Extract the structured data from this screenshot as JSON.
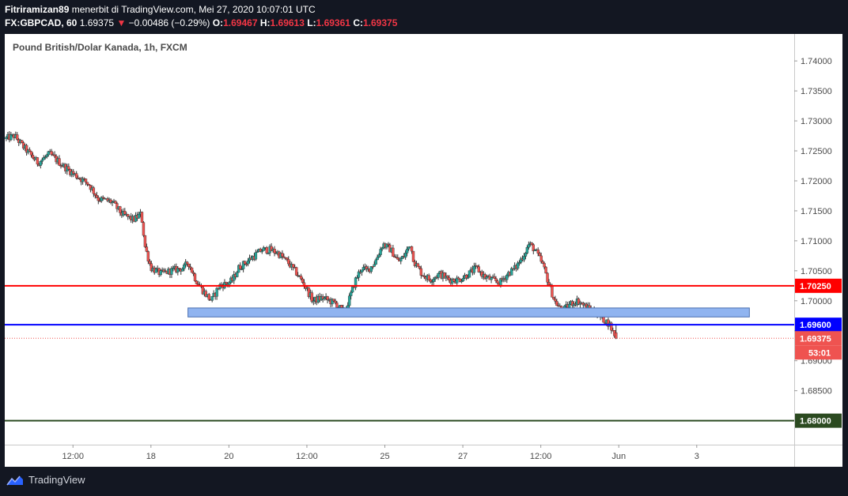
{
  "header": {
    "author": "Fitriramizan89",
    "published_text": "menerbit di TradingView.com, Mei 27, 2020 10:07:01 UTC",
    "symbol_interval": "FX:GBPCAD, 60",
    "last_price": "1.69375",
    "change_arrow": "▼",
    "change": "−0.00486 (−0.29%)",
    "o_label": "O:",
    "o_value": "1.69467",
    "h_label": "H:",
    "h_value": "1.69613",
    "l_label": "L:",
    "l_value": "1.69361",
    "c_label": "C:",
    "c_value": "1.69375"
  },
  "footer": {
    "brand": "TradingView"
  },
  "chart_data": {
    "type": "candlestick",
    "title": "Pound British/Dolar Kanada, 1h, FXCM",
    "ylim": [
      1.676,
      1.7445
    ],
    "y_ticks": [
      "1.74000",
      "1.73500",
      "1.73000",
      "1.72500",
      "1.72000",
      "1.71500",
      "1.71000",
      "1.70500",
      "1.70000",
      "1.69500",
      "1.69000",
      "1.68500"
    ],
    "y_tick_values": [
      1.74,
      1.735,
      1.73,
      1.725,
      1.72,
      1.715,
      1.71,
      1.705,
      1.7,
      1.695,
      1.69,
      1.685
    ],
    "x_ticks": [
      "12:00",
      "18",
      "20",
      "12:00",
      "25",
      "27",
      "12:00",
      "Jun",
      "3"
    ],
    "x_tick_positions": [
      1.5,
      5.5,
      9.5,
      13.5,
      17.5,
      21.5,
      25.5,
      29.5,
      33.5
    ],
    "x_range": [
      -2.0,
      38.5
    ],
    "horizontal_lines": [
      {
        "name": "resistance",
        "value": 1.7025,
        "label": "1.70250",
        "color": "#ff0000"
      },
      {
        "name": "support",
        "value": 1.696,
        "label": "1.69600",
        "color": "#0000ff"
      },
      {
        "name": "target",
        "value": 1.68,
        "label": "1.68000",
        "color": "#2b4a20"
      }
    ],
    "current_price": {
      "value": 1.69375,
      "label": "1.69375",
      "countdown": "53:01",
      "color": "#ef5350"
    },
    "zone": {
      "x_start": 7.4,
      "x_end": 36.2,
      "y_low": 1.6973,
      "y_high": 1.6988,
      "color": "#90b4f0"
    },
    "colors": {
      "up": "#26a69a",
      "down": "#ef5350",
      "wick": "#333333"
    },
    "candle_path": [
      [
        -2.0,
        1.727
      ],
      [
        -1.5,
        1.7275
      ],
      [
        -1.0,
        1.7255
      ],
      [
        -0.3,
        1.723
      ],
      [
        0.3,
        1.7245
      ],
      [
        1.0,
        1.7225
      ],
      [
        1.6,
        1.721
      ],
      [
        2.3,
        1.7195
      ],
      [
        2.8,
        1.717
      ],
      [
        3.5,
        1.7165
      ],
      [
        4.0,
        1.7145
      ],
      [
        4.6,
        1.7135
      ],
      [
        5.0,
        1.7145
      ],
      [
        5.2,
        1.709
      ],
      [
        5.5,
        1.7055
      ],
      [
        6.0,
        1.7045
      ],
      [
        6.5,
        1.705
      ],
      [
        7.2,
        1.7055
      ],
      [
        7.4,
        1.7065
      ],
      [
        7.8,
        1.7035
      ],
      [
        8.2,
        1.7015
      ],
      [
        8.6,
        1.7
      ],
      [
        9.0,
        1.7025
      ],
      [
        9.5,
        1.703
      ],
      [
        9.7,
        1.7035
      ],
      [
        10.0,
        1.7055
      ],
      [
        10.4,
        1.7065
      ],
      [
        10.8,
        1.7075
      ],
      [
        11.2,
        1.7085
      ],
      [
        11.6,
        1.7085
      ],
      [
        12.0,
        1.708
      ],
      [
        12.5,
        1.7065
      ],
      [
        13.0,
        1.7045
      ],
      [
        13.4,
        1.7025
      ],
      [
        13.8,
        1.7
      ],
      [
        14.3,
        1.7005
      ],
      [
        15.0,
        1.6995
      ],
      [
        15.4,
        1.698
      ],
      [
        15.7,
        1.7005
      ],
      [
        16.0,
        1.7035
      ],
      [
        16.3,
        1.7055
      ],
      [
        16.6,
        1.705
      ],
      [
        17.0,
        1.7065
      ],
      [
        17.4,
        1.7095
      ],
      [
        17.8,
        1.7085
      ],
      [
        18.2,
        1.7065
      ],
      [
        18.5,
        1.7075
      ],
      [
        18.8,
        1.7095
      ],
      [
        19.0,
        1.7065
      ],
      [
        19.4,
        1.7045
      ],
      [
        19.8,
        1.7035
      ],
      [
        20.3,
        1.7045
      ],
      [
        20.8,
        1.7035
      ],
      [
        21.3,
        1.7035
      ],
      [
        21.8,
        1.7045
      ],
      [
        22.2,
        1.7055
      ],
      [
        22.6,
        1.704
      ],
      [
        23.0,
        1.7035
      ],
      [
        23.4,
        1.703
      ],
      [
        23.8,
        1.7045
      ],
      [
        24.2,
        1.7055
      ],
      [
        24.6,
        1.7075
      ],
      [
        24.9,
        1.7095
      ],
      [
        25.2,
        1.7085
      ],
      [
        25.6,
        1.706
      ],
      [
        25.9,
        1.703
      ],
      [
        26.2,
        1.7
      ],
      [
        26.6,
        1.6982
      ],
      [
        27.0,
        1.6995
      ],
      [
        27.4,
        1.7
      ],
      [
        27.8,
        1.699
      ],
      [
        28.2,
        1.6982
      ],
      [
        28.6,
        1.6972
      ],
      [
        29.0,
        1.6962
      ],
      [
        29.25,
        1.6945
      ],
      [
        29.4,
        1.6937
      ]
    ]
  }
}
